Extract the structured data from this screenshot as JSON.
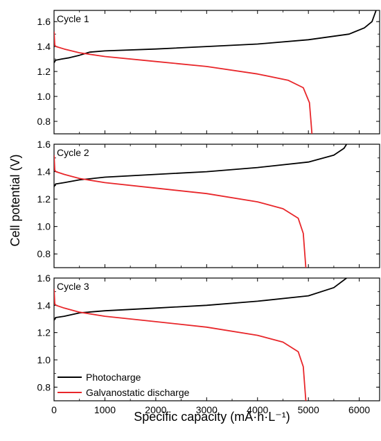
{
  "chart_data": {
    "type": "line",
    "xlabel": "Specific capacity (mA·h·L⁻¹)",
    "ylabel": "Cell potential (V)",
    "xlim": [
      0,
      6400
    ],
    "xticks": [
      0,
      1000,
      2000,
      3000,
      4000,
      5000,
      6000
    ],
    "legend": {
      "placement": "bottom-left of bottom panel",
      "entries": [
        {
          "name": "Photocharge",
          "color": "#000000"
        },
        {
          "name": "Galvanostatic discharge",
          "color": "#e8262a"
        }
      ]
    },
    "panels": [
      {
        "label": "Cycle 1",
        "ylim": [
          0.7,
          1.69
        ],
        "yticks": [
          0.8,
          1.0,
          1.2,
          1.4,
          1.6
        ],
        "series": [
          {
            "name": "Photocharge",
            "x": [
              0,
              30,
              150,
              300,
              500,
              700,
              1000,
              2000,
              3000,
              4000,
              5000,
              5800,
              6100,
              6250,
              6330
            ],
            "y": [
              1.27,
              1.29,
              1.3,
              1.31,
              1.33,
              1.355,
              1.365,
              1.38,
              1.4,
              1.42,
              1.455,
              1.5,
              1.55,
              1.6,
              1.69
            ]
          },
          {
            "name": "Galvanostatic discharge",
            "x": [
              0,
              15,
              40,
              200,
              500,
              1000,
              2000,
              3000,
              4000,
              4600,
              4900,
              5020,
              5050,
              5070
            ],
            "y": [
              1.52,
              1.41,
              1.4,
              1.38,
              1.35,
              1.32,
              1.28,
              1.24,
              1.18,
              1.13,
              1.07,
              0.95,
              0.8,
              0.7
            ]
          }
        ]
      },
      {
        "label": "Cycle 2",
        "ylim": [
          0.7,
          1.6
        ],
        "yticks": [
          0.8,
          1.0,
          1.2,
          1.4,
          1.6
        ],
        "series": [
          {
            "name": "Photocharge",
            "x": [
              0,
              30,
              200,
              500,
              1000,
              2000,
              3000,
              4000,
              5000,
              5500,
              5700,
              5750
            ],
            "y": [
              1.29,
              1.31,
              1.32,
              1.34,
              1.36,
              1.38,
              1.4,
              1.43,
              1.47,
              1.52,
              1.57,
              1.6
            ]
          },
          {
            "name": "Galvanostatic discharge",
            "x": [
              0,
              15,
              40,
              200,
              500,
              1000,
              2000,
              3000,
              4000,
              4500,
              4800,
              4900,
              4930,
              4950
            ],
            "y": [
              1.52,
              1.41,
              1.4,
              1.38,
              1.35,
              1.32,
              1.28,
              1.24,
              1.18,
              1.13,
              1.06,
              0.95,
              0.8,
              0.7
            ]
          }
        ]
      },
      {
        "label": "Cycle 3",
        "ylim": [
          0.7,
          1.6
        ],
        "yticks": [
          0.8,
          1.0,
          1.2,
          1.4,
          1.6
        ],
        "series": [
          {
            "name": "Photocharge",
            "x": [
              0,
              30,
              200,
              500,
              1000,
              2000,
              3000,
              4000,
              5000,
              5500,
              5750
            ],
            "y": [
              1.29,
              1.31,
              1.32,
              1.345,
              1.36,
              1.38,
              1.4,
              1.43,
              1.47,
              1.53,
              1.6
            ]
          },
          {
            "name": "Galvanostatic discharge",
            "x": [
              0,
              15,
              40,
              200,
              500,
              1000,
              2000,
              3000,
              4000,
              4500,
              4800,
              4900,
              4930,
              4950
            ],
            "y": [
              1.52,
              1.41,
              1.4,
              1.38,
              1.35,
              1.32,
              1.28,
              1.24,
              1.18,
              1.13,
              1.06,
              0.95,
              0.8,
              0.7
            ]
          }
        ]
      }
    ]
  }
}
